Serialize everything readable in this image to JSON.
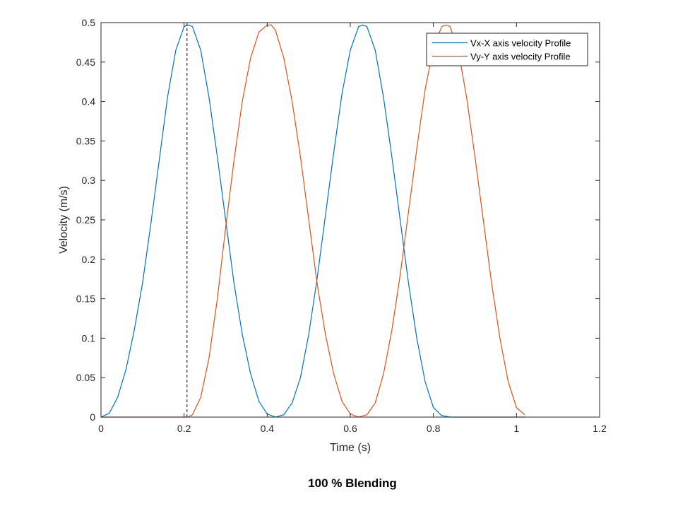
{
  "chart_data": {
    "type": "line",
    "title": "",
    "xlabel": "Time (s)",
    "ylabel": "Velocity (m/s)",
    "xlim": [
      0,
      1.2
    ],
    "ylim": [
      0,
      0.5
    ],
    "xticks": [
      0,
      0.2,
      0.4,
      0.6,
      0.8,
      1,
      1.2
    ],
    "xtick_labels": [
      "0",
      "0.2",
      "0.4",
      "0.6",
      "0.8",
      "1",
      "1.2"
    ],
    "yticks": [
      0,
      0.05,
      0.1,
      0.15,
      0.2,
      0.25,
      0.3,
      0.35,
      0.4,
      0.45,
      0.5
    ],
    "ytick_labels": [
      "0",
      "0.05",
      "0.1",
      "0.15",
      "0.2",
      "0.25",
      "0.3",
      "0.35",
      "0.4",
      "0.45",
      "0.5"
    ],
    "grid": false,
    "legend_position": "top-right",
    "series": [
      {
        "name": "Vx-X axis velocity Profile",
        "color": "#0072BD",
        "x": [
          0.0,
          0.02,
          0.04,
          0.06,
          0.08,
          0.1,
          0.12,
          0.14,
          0.16,
          0.18,
          0.2,
          0.21,
          0.22,
          0.24,
          0.26,
          0.28,
          0.3,
          0.32,
          0.34,
          0.36,
          0.38,
          0.4,
          0.42,
          0.44,
          0.46,
          0.48,
          0.5,
          0.52,
          0.54,
          0.56,
          0.58,
          0.6,
          0.62,
          0.63,
          0.64,
          0.66,
          0.68,
          0.7,
          0.72,
          0.74,
          0.76,
          0.78,
          0.8,
          0.82,
          0.84,
          0.86,
          0.9,
          0.95,
          1.0,
          1.02
        ],
        "y": [
          0.0,
          0.005,
          0.025,
          0.06,
          0.11,
          0.17,
          0.245,
          0.325,
          0.405,
          0.465,
          0.495,
          0.497,
          0.495,
          0.465,
          0.405,
          0.33,
          0.25,
          0.17,
          0.105,
          0.055,
          0.02,
          0.004,
          0.0,
          0.003,
          0.018,
          0.05,
          0.105,
          0.175,
          0.255,
          0.335,
          0.41,
          0.465,
          0.495,
          0.497,
          0.495,
          0.465,
          0.405,
          0.33,
          0.25,
          0.17,
          0.1,
          0.045,
          0.012,
          0.002,
          0.0,
          0.0,
          0.0,
          0.0,
          0.0,
          0.0
        ]
      },
      {
        "name": "Vy-Y axis velocity Profile",
        "color": "#D95319",
        "x": [
          0.0,
          0.1,
          0.2,
          0.21,
          0.22,
          0.24,
          0.26,
          0.28,
          0.3,
          0.32,
          0.34,
          0.36,
          0.38,
          0.4,
          0.41,
          0.42,
          0.44,
          0.46,
          0.48,
          0.5,
          0.52,
          0.54,
          0.56,
          0.58,
          0.6,
          0.62,
          0.64,
          0.66,
          0.68,
          0.7,
          0.72,
          0.74,
          0.76,
          0.78,
          0.8,
          0.82,
          0.83,
          0.84,
          0.86,
          0.88,
          0.9,
          0.92,
          0.94,
          0.96,
          0.98,
          1.0,
          1.02
        ],
        "y": [
          0.0,
          0.0,
          0.0,
          0.0,
          0.003,
          0.025,
          0.075,
          0.15,
          0.24,
          0.325,
          0.4,
          0.455,
          0.488,
          0.497,
          0.497,
          0.49,
          0.455,
          0.4,
          0.33,
          0.25,
          0.17,
          0.105,
          0.055,
          0.02,
          0.004,
          0.0,
          0.003,
          0.018,
          0.055,
          0.11,
          0.18,
          0.26,
          0.34,
          0.415,
          0.468,
          0.495,
          0.497,
          0.495,
          0.465,
          0.405,
          0.33,
          0.25,
          0.17,
          0.1,
          0.045,
          0.012,
          0.003
        ]
      },
      {
        "name": "",
        "color": "#000000",
        "style": "dashed",
        "x": [
          0.207,
          0.207
        ],
        "y": [
          0,
          0.5
        ]
      }
    ]
  },
  "caption": "100 % Blending"
}
